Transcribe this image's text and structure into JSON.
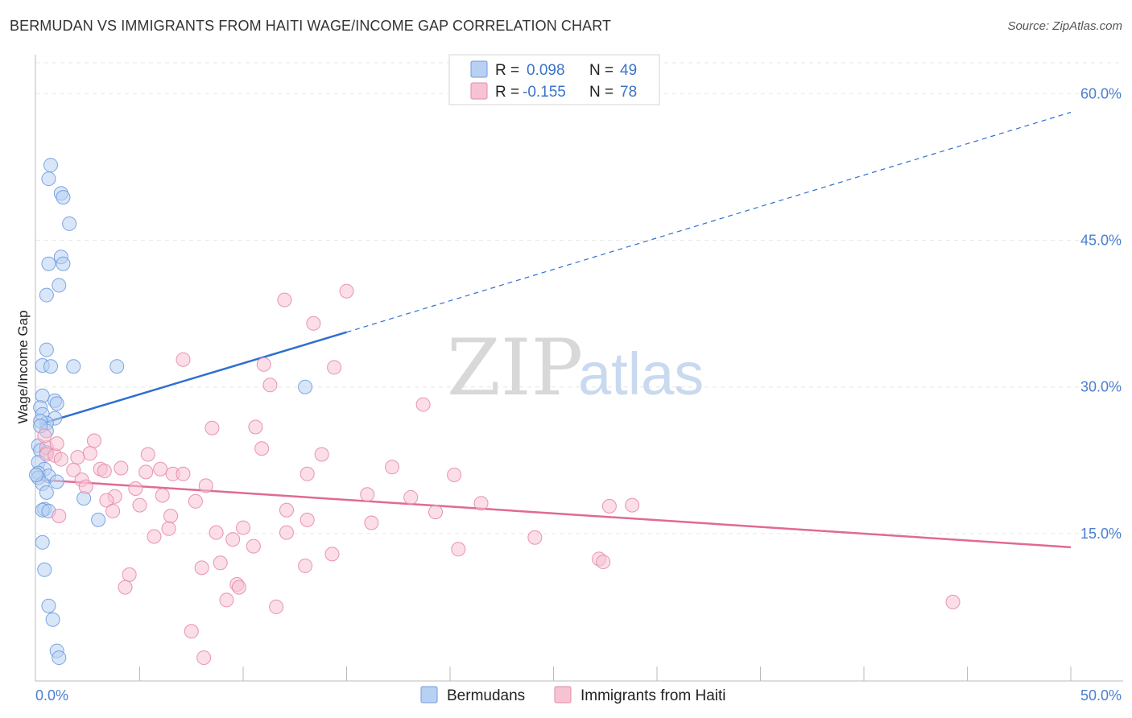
{
  "title": "BERMUDAN VS IMMIGRANTS FROM HAITI WAGE/INCOME GAP CORRELATION CHART",
  "source": "Source: ZipAtlas.com",
  "watermark": {
    "zip": "ZIP",
    "atlas": "atlas"
  },
  "legend": {
    "r_label": "R =",
    "n_label": "N =",
    "rows": [
      {
        "r": "0.098",
        "n": "49",
        "fill": "#b8d1f2",
        "stroke": "#6f9be0"
      },
      {
        "r": "-0.155",
        "n": "78",
        "fill": "#f7c3d3",
        "stroke": "#e68aa8"
      }
    ]
  },
  "chart_data": {
    "type": "scatter",
    "ylabel": "Wage/Income Gap",
    "xlim": [
      0,
      50
    ],
    "ylim": [
      0,
      63
    ],
    "x_tick_labels": [
      {
        "value": 0,
        "label": "0.0%"
      },
      {
        "value": 50,
        "label": "50.0%"
      }
    ],
    "y_ticks": [
      {
        "value": 15,
        "label": "15.0%"
      },
      {
        "value": 30,
        "label": "30.0%"
      },
      {
        "value": 45,
        "label": "45.0%"
      },
      {
        "value": 60,
        "label": "60.0%"
      }
    ],
    "grid": true,
    "series": [
      {
        "name": "Bermudans",
        "color": "#6f9be0",
        "fill": "#b8d1f2",
        "line_color": "#2f6fcf",
        "trend": {
          "x0": 0.2,
          "y0": 26.2,
          "x1": 15.0,
          "y1": 35.6,
          "x_dash_end": 50.0,
          "y_dash_end": 58.1
        },
        "points": [
          [
            0.7,
            52.7
          ],
          [
            0.6,
            51.3
          ],
          [
            1.2,
            49.8
          ],
          [
            1.3,
            49.4
          ],
          [
            1.6,
            46.7
          ],
          [
            1.2,
            43.3
          ],
          [
            0.6,
            42.6
          ],
          [
            1.3,
            42.6
          ],
          [
            1.1,
            40.4
          ],
          [
            0.5,
            39.4
          ],
          [
            0.5,
            33.8
          ],
          [
            0.3,
            32.2
          ],
          [
            0.7,
            32.1
          ],
          [
            1.8,
            32.1
          ],
          [
            3.9,
            32.1
          ],
          [
            13.0,
            30.0
          ],
          [
            0.3,
            29.1
          ],
          [
            0.9,
            28.6
          ],
          [
            0.2,
            27.9
          ],
          [
            1.0,
            28.3
          ],
          [
            0.3,
            27.2
          ],
          [
            0.9,
            26.8
          ],
          [
            0.5,
            26.3
          ],
          [
            0.2,
            26.5
          ],
          [
            0.5,
            25.5
          ],
          [
            0.1,
            24.0
          ],
          [
            0.2,
            23.5
          ],
          [
            0.5,
            23.3
          ],
          [
            0.1,
            22.3
          ],
          [
            0.4,
            21.6
          ],
          [
            0.1,
            21.2
          ],
          [
            0.6,
            20.9
          ],
          [
            0.1,
            20.7
          ],
          [
            1.0,
            20.3
          ],
          [
            0.3,
            20.1
          ],
          [
            0.5,
            19.2
          ],
          [
            2.3,
            18.6
          ],
          [
            0.4,
            17.5
          ],
          [
            0.3,
            17.4
          ],
          [
            0.6,
            17.3
          ],
          [
            3.0,
            16.4
          ],
          [
            0.3,
            14.1
          ],
          [
            0.4,
            11.3
          ],
          [
            0.6,
            7.6
          ],
          [
            0.8,
            6.2
          ],
          [
            1.0,
            3.0
          ],
          [
            1.1,
            2.3
          ],
          [
            0.0,
            21.0
          ],
          [
            0.2,
            26.0
          ]
        ]
      },
      {
        "name": "Immigrants from Haiti",
        "color": "#e68aa8",
        "fill": "#f7c3d3",
        "line_color": "#e06a93",
        "trend": {
          "x0": 0.2,
          "y0": 20.5,
          "x1": 50.0,
          "y1": 13.6
        },
        "points": [
          [
            15.0,
            39.8
          ],
          [
            12.0,
            38.9
          ],
          [
            13.4,
            36.5
          ],
          [
            7.1,
            32.8
          ],
          [
            11.0,
            32.3
          ],
          [
            14.4,
            32.0
          ],
          [
            11.3,
            30.2
          ],
          [
            18.7,
            28.2
          ],
          [
            8.5,
            25.8
          ],
          [
            10.6,
            25.9
          ],
          [
            2.8,
            24.5
          ],
          [
            0.5,
            23.8
          ],
          [
            10.9,
            23.7
          ],
          [
            0.5,
            23.1
          ],
          [
            0.9,
            23.0
          ],
          [
            5.4,
            23.1
          ],
          [
            13.8,
            23.1
          ],
          [
            2.6,
            23.2
          ],
          [
            2.0,
            22.8
          ],
          [
            1.2,
            22.6
          ],
          [
            17.2,
            21.8
          ],
          [
            4.1,
            21.7
          ],
          [
            3.1,
            21.6
          ],
          [
            6.0,
            21.6
          ],
          [
            3.3,
            21.4
          ],
          [
            5.3,
            21.3
          ],
          [
            6.6,
            21.1
          ],
          [
            7.1,
            21.1
          ],
          [
            1.8,
            21.5
          ],
          [
            13.1,
            21.1
          ],
          [
            20.2,
            21.0
          ],
          [
            2.2,
            20.5
          ],
          [
            8.2,
            19.9
          ],
          [
            2.4,
            19.8
          ],
          [
            4.8,
            19.6
          ],
          [
            3.8,
            18.8
          ],
          [
            6.1,
            18.9
          ],
          [
            16.0,
            19.0
          ],
          [
            18.1,
            18.7
          ],
          [
            3.4,
            18.4
          ],
          [
            7.7,
            18.3
          ],
          [
            21.5,
            18.1
          ],
          [
            5.0,
            17.9
          ],
          [
            27.7,
            17.8
          ],
          [
            28.8,
            17.9
          ],
          [
            1.1,
            16.8
          ],
          [
            3.7,
            17.3
          ],
          [
            12.1,
            17.4
          ],
          [
            6.5,
            16.8
          ],
          [
            19.3,
            17.2
          ],
          [
            13.1,
            16.4
          ],
          [
            16.2,
            16.1
          ],
          [
            10.0,
            15.6
          ],
          [
            6.4,
            15.5
          ],
          [
            8.7,
            15.1
          ],
          [
            12.1,
            15.1
          ],
          [
            5.7,
            14.7
          ],
          [
            9.5,
            14.4
          ],
          [
            24.1,
            14.6
          ],
          [
            10.5,
            13.7
          ],
          [
            20.4,
            13.4
          ],
          [
            14.3,
            12.9
          ],
          [
            27.2,
            12.4
          ],
          [
            27.4,
            12.1
          ],
          [
            8.9,
            12.0
          ],
          [
            13.0,
            11.7
          ],
          [
            8.0,
            11.5
          ],
          [
            4.5,
            10.8
          ],
          [
            4.3,
            9.5
          ],
          [
            9.7,
            9.8
          ],
          [
            9.8,
            9.5
          ],
          [
            9.2,
            8.2
          ],
          [
            11.6,
            7.5
          ],
          [
            44.3,
            8.0
          ],
          [
            7.5,
            5.0
          ],
          [
            8.1,
            2.3
          ],
          [
            0.4,
            25.0
          ],
          [
            1.0,
            24.2
          ]
        ]
      }
    ]
  }
}
